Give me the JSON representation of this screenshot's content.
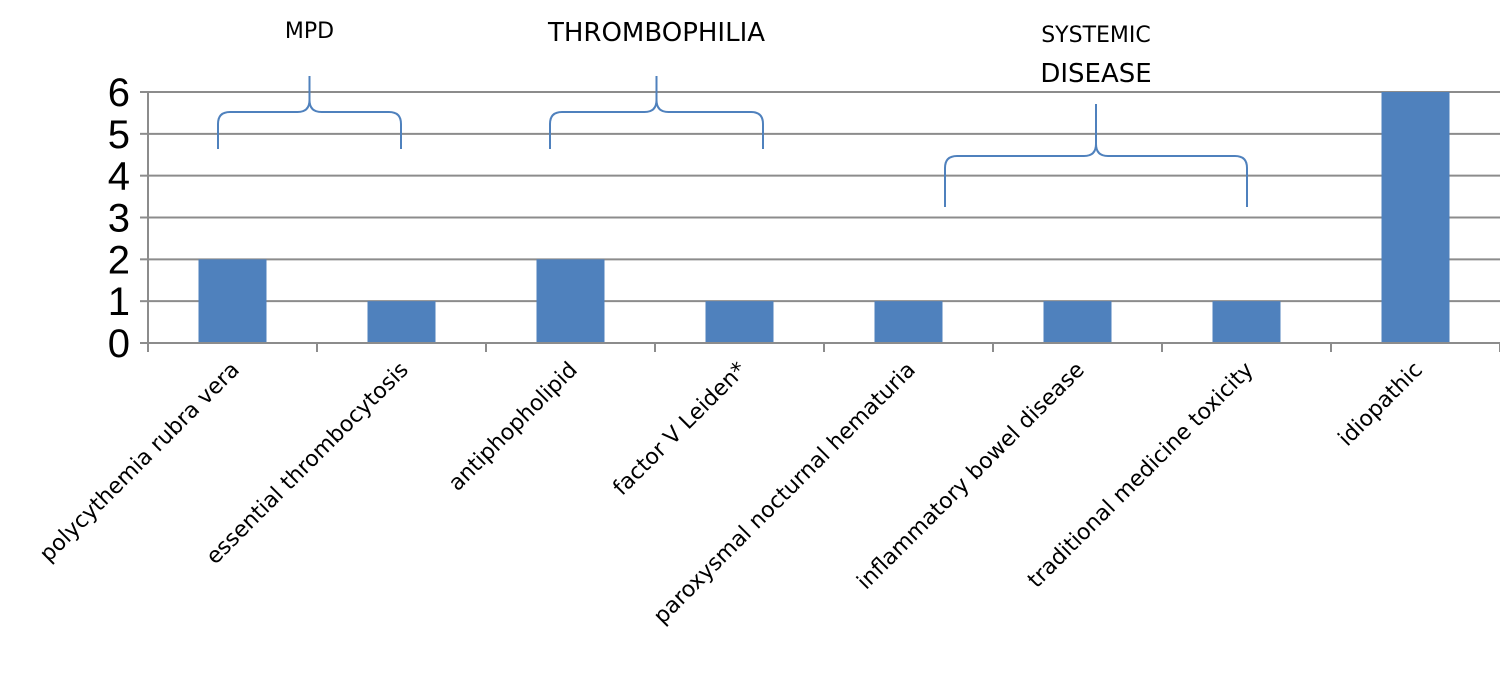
{
  "chart_data": {
    "type": "bar",
    "categories": [
      "polycythemia rubra vera",
      "essential thrombocytosis",
      "antiphopholipid",
      "factor V Leiden*",
      "paroxysmal nocturnal hematuria",
      "inflammatory bowel disease",
      "traditional medicine toxicity",
      "idiopathic"
    ],
    "values": [
      2,
      1,
      2,
      1,
      1,
      1,
      1,
      6
    ],
    "ylim": [
      0,
      6
    ],
    "yticks": [
      "0",
      "1",
      "2",
      "3",
      "4",
      "5",
      "6"
    ],
    "grid": true,
    "bar_color": "#4f81bd",
    "bracket_color": "#4f81bd",
    "groups": [
      {
        "label_lines": [
          "MPD"
        ],
        "categories": [
          0,
          1
        ]
      },
      {
        "label_lines": [
          "THROMBOPHILIA"
        ],
        "categories": [
          2,
          3
        ]
      },
      {
        "label_lines": [
          "SYSTEMIC",
          "DISEASE"
        ],
        "categories": [
          4,
          6
        ]
      }
    ]
  }
}
